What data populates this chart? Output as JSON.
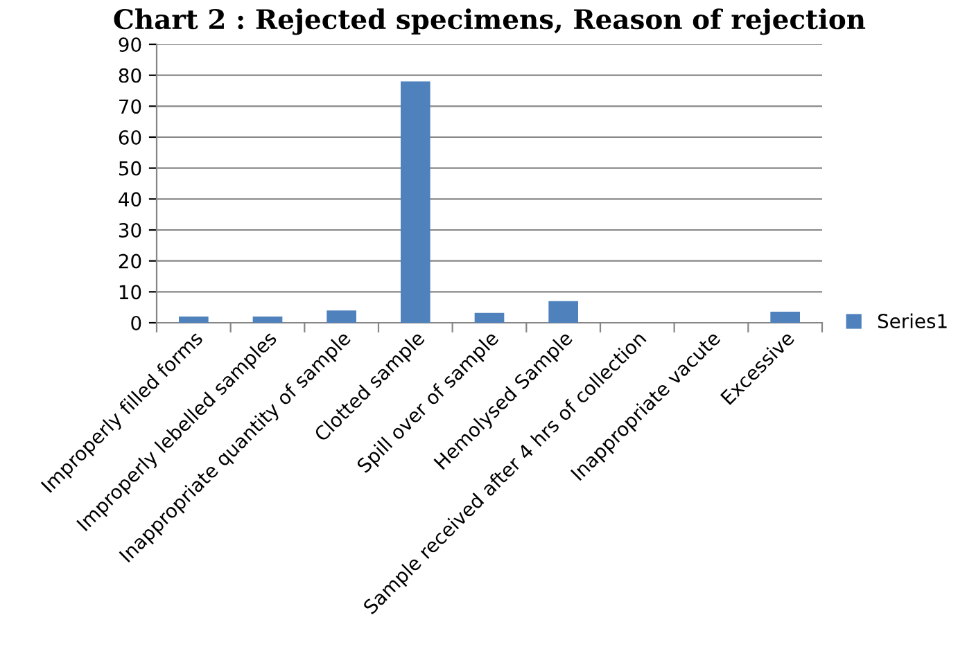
{
  "chart_data": {
    "type": "bar",
    "title": "Chart 2 : Rejected specimens, Reason of rejection",
    "categories": [
      "Improperly filled forms",
      "Improperly lebelled samples",
      "Inappropriate quantity of sample",
      "Clotted sample",
      "Spill over of sample",
      "Hemolysed Sample",
      "Sample received after 4 hrs of collection",
      "Inappropriate vacute",
      "Excessive"
    ],
    "series": [
      {
        "name": "Series1",
        "color": "#4f81bd",
        "values": [
          2,
          2,
          4,
          78,
          3.2,
          7,
          0,
          0,
          3.6
        ]
      }
    ],
    "ylim": [
      0,
      90
    ],
    "yticks": [
      0,
      10,
      20,
      30,
      40,
      50,
      60,
      70,
      80,
      90
    ],
    "grid": "y",
    "legend": "right"
  }
}
